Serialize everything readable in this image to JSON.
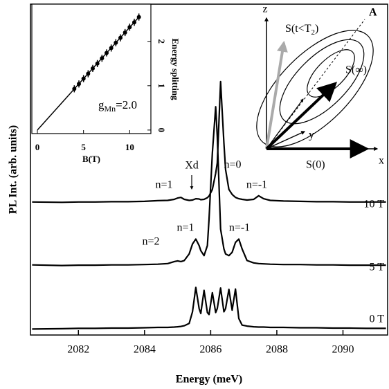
{
  "chart_data": [
    {
      "type": "line",
      "xlabel": "Energy (meV)",
      "ylabel": "PL Int. (arb. units)",
      "xlim": [
        2080.55,
        2091.35
      ],
      "xticks": [
        2082,
        2084,
        2086,
        2088,
        2090
      ],
      "ylim": [
        0,
        100
      ],
      "x": [
        2080.6,
        2081.5,
        2082.0,
        2082.5,
        2083.0,
        2083.5,
        2084.0,
        2084.4,
        2084.7,
        2084.9,
        2085.0,
        2085.1,
        2085.2,
        2085.35,
        2085.45,
        2085.55,
        2085.65,
        2085.7,
        2085.8,
        2085.9,
        2085.95,
        2086.05,
        2086.15,
        2086.2,
        2086.3,
        2086.4,
        2086.45,
        2086.55,
        2086.65,
        2086.75,
        2086.85,
        2086.95,
        2087.1,
        2087.3,
        2087.45,
        2087.6,
        2087.8,
        2088.2,
        2088.7,
        2089.2,
        2089.7,
        2090.2,
        2090.7,
        2091.2,
        2091.3
      ],
      "series": [
        {
          "name": "10 T",
          "color": "#000000",
          "values": [
            40.2,
            40.1,
            40.2,
            40.2,
            40.3,
            40.3,
            40.4,
            40.6,
            40.7,
            41.0,
            41.4,
            41.6,
            41.0,
            40.7,
            40.8,
            41.2,
            41.1,
            40.9,
            41.0,
            41.5,
            42,
            44,
            48.9,
            52,
            76.6,
            58,
            50,
            44,
            42.5,
            41.6,
            41.2,
            41,
            40.8,
            41.0,
            42.1,
            41.2,
            40.7,
            40.5,
            40.4,
            40.3,
            40.3,
            40.2,
            40.2,
            40.2,
            40.2
          ]
        },
        {
          "name": "5 T",
          "color": "#000000",
          "values": [
            21.2,
            21.0,
            21.1,
            21.1,
            21.2,
            21.2,
            21.3,
            21.4,
            21.6,
            22.2,
            22.4,
            22.2,
            22.5,
            24.5,
            27.5,
            29,
            27,
            25.5,
            24,
            27,
            35,
            55,
            69,
            60,
            32,
            26,
            24.5,
            24,
            25,
            28,
            29,
            26,
            22.5,
            21.8,
            21.6,
            21.5,
            21.4,
            21.3,
            21.3,
            21.2,
            21.2,
            21.1,
            21.1,
            21.1,
            21.1
          ]
        },
        {
          "name": "0 T",
          "color": "#000000",
          "values": [
            1.8,
            1.9,
            2.0,
            2.0,
            2.1,
            2.1,
            2.2,
            2.3,
            2.3,
            2.4,
            2.5,
            2.6,
            2.8,
            3.5,
            7,
            14.4,
            8,
            6.5,
            13.5,
            6.8,
            6.2,
            12.8,
            6.8,
            8,
            14.2,
            7,
            8,
            13.8,
            7.5,
            13.9,
            5,
            3,
            2.7,
            2.5,
            2.4,
            2.4,
            2.3,
            2.3,
            2.2,
            2.2,
            2.1,
            2.1,
            2.0,
            2.0,
            2.0
          ]
        }
      ],
      "annotations": [
        "n=1",
        "Xd",
        "n=0",
        "n=-1",
        "n=2",
        "n=1",
        "n=-1"
      ]
    },
    {
      "type": "scatter",
      "xlabel": "B(T)",
      "ylabel": "Energy splitting",
      "xlim": [
        -0.6,
        12.3
      ],
      "xticks": [
        0,
        5,
        10
      ],
      "ylim": [
        -0.08,
        2.84
      ],
      "yticks": [
        0,
        1,
        2
      ],
      "x": [
        4,
        4.5,
        5,
        5.5,
        6,
        6.5,
        7,
        7.5,
        8,
        8.5,
        9,
        9.5,
        10,
        10.5,
        11
      ],
      "values": [
        0.93,
        1.04,
        1.16,
        1.27,
        1.39,
        1.5,
        1.62,
        1.74,
        1.85,
        1.97,
        2.08,
        2.2,
        2.32,
        2.43,
        2.55
      ],
      "errors": [
        0.08,
        0.08,
        0.08,
        0.08,
        0.08,
        0.08,
        0.08,
        0.08,
        0.08,
        0.08,
        0.08,
        0.08,
        0.08,
        0.08,
        0.08
      ],
      "fit": {
        "x": [
          0,
          11
        ],
        "values": [
          0,
          2.55
        ]
      },
      "annotation": {
        "main": "g",
        "sub": "Mn",
        "rest": "=2.0"
      }
    }
  ],
  "diagram": {
    "z": "z",
    "x": "x",
    "y": "y",
    "A": "A",
    "s0": "S(0)",
    "sinf": "S(∞)",
    "st": {
      "main": "S(t<T",
      "sub": "2",
      "rest": ")"
    }
  }
}
